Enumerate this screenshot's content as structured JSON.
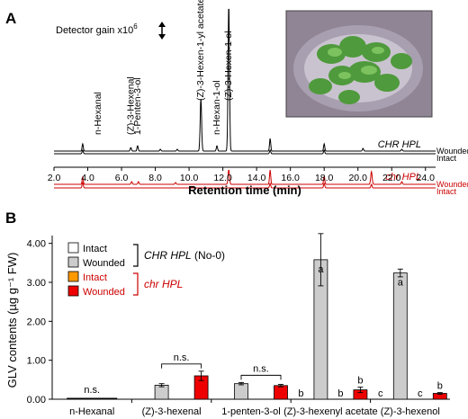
{
  "panel_a": {
    "label": "A",
    "gain_text": "Detector gain x10",
    "gain_exp": "6",
    "xlabel": "Retention time (min)",
    "xticks": [
      "2.0",
      "4.0",
      "6.0",
      "8.0",
      "10.0",
      "12.0",
      "14.0",
      "16.0",
      "18.0",
      "20.0",
      "22.0",
      "24.0"
    ],
    "peak_labels": [
      {
        "text": "n-Hexanal",
        "rt": 4.6
      },
      {
        "text": "(Z)-3-Hexenal",
        "rt": 6.55
      },
      {
        "text": "1-Penten-3-ol",
        "rt": 6.95
      },
      {
        "text": "(Z)-3-Hexen-1-yl acetate",
        "rt": 10.7
      },
      {
        "text": "n-Hexan-1-ol",
        "rt": 11.65
      },
      {
        "text": "(Z)-3-Hexen-1-ol",
        "rt": 12.35
      }
    ],
    "chr_label_wt": "CHR HPL",
    "chr_label_mut": "chr HPL",
    "trace_labels": {
      "wounded": "Wounded",
      "intact": "Intact"
    },
    "colors": {
      "wt": "#000000",
      "mut": "#cc0000"
    }
  },
  "panel_b": {
    "label": "B",
    "legend": {
      "wt_intact": "Intact",
      "wt_wounded": "Wounded",
      "wt_name": "CHR HPL",
      "wt_suffix": "(No-0)",
      "mut_intact": "Intact",
      "mut_wounded": "Wounded",
      "mut_name": "chr HPL"
    },
    "ns_label": "n.s."
  },
  "chart_data": {
    "type": "bar",
    "ylabel": "GLV contents (µg g⁻¹ FW)",
    "ylim": [
      0,
      4.2
    ],
    "yticks": [
      "0.00",
      "1.00",
      "2.00",
      "3.00",
      "4.00"
    ],
    "categories": [
      "n-Hexanal",
      "(Z)-3-hexenal",
      "1-penten-3-ol",
      "(Z)-3-hexenyl acetate",
      "(Z)-3-hexenol"
    ],
    "series": [
      {
        "name": "Intact (CHR HPL)",
        "color": "#ffffff",
        "values": [
          0.02,
          0.0,
          0.0,
          0.0,
          0.0
        ]
      },
      {
        "name": "Wounded (CHR HPL)",
        "color": "#cccccc",
        "values": [
          0.02,
          0.36,
          0.4,
          3.58,
          3.24
        ],
        "errors": [
          0.0,
          0.04,
          0.03,
          0.67,
          0.1
        ]
      },
      {
        "name": "Intact (chr HPL)",
        "color": "#ff9900",
        "values": [
          0.02,
          0.0,
          0.0,
          0.0,
          0.0
        ]
      },
      {
        "name": "Wounded (chr HPL)",
        "color": "#ee0000",
        "values": [
          0.02,
          0.6,
          0.35,
          0.24,
          0.15
        ],
        "errors": [
          0.0,
          0.12,
          0.03,
          0.07,
          0.02
        ]
      }
    ],
    "annotations": [
      {
        "category": 3,
        "series": 0,
        "text": "b"
      },
      {
        "category": 3,
        "series": 1,
        "text": "a"
      },
      {
        "category": 3,
        "series": 2,
        "text": "b"
      },
      {
        "category": 3,
        "series": 3,
        "text": "b"
      },
      {
        "category": 4,
        "series": 0,
        "text": "c"
      },
      {
        "category": 4,
        "series": 1,
        "text": "a"
      },
      {
        "category": 4,
        "series": 2,
        "text": "c"
      },
      {
        "category": 4,
        "series": 3,
        "text": "b"
      }
    ],
    "ns_categories": [
      0,
      1,
      2
    ]
  }
}
